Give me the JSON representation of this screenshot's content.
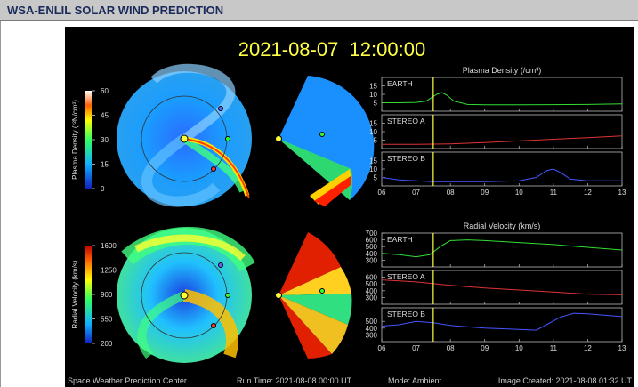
{
  "page": {
    "title": "WSA-ENLIL SOLAR WIND PREDICTION"
  },
  "figure": {
    "timestamp": "2021-08-07  12:00:00",
    "density_colorbar": {
      "label": "Plasma Density (r²N/cm³)",
      "ticks": [
        "60",
        "45",
        "30",
        "15",
        "0"
      ]
    },
    "velocity_colorbar": {
      "label": "Radial Velocity (km/s)",
      "ticks": [
        "1600",
        "1250",
        "900",
        "550",
        "200"
      ]
    },
    "footer": {
      "center": "Space Weather Prediction Center",
      "run_time": "Run Time: 2021-08-08 00:00 UT",
      "mode": "Mode: Ambient",
      "created": "Image Created: 2021-08-08 01:32 UT"
    }
  },
  "chart_data": [
    {
      "type": "line",
      "title": "Plasma Density (/cm³)",
      "x_ticks": [
        "06",
        "07",
        "08",
        "09",
        "10",
        "11",
        "12",
        "13"
      ],
      "xlim": [
        6,
        13
      ],
      "current_time": 7.5,
      "panels": [
        {
          "name": "EARTH",
          "color": "#33dd33",
          "ylim": [
            0,
            20
          ],
          "y_ticks": [
            "15",
            "10",
            "5"
          ],
          "x": [
            6,
            6.5,
            7,
            7.3,
            7.6,
            7.75,
            7.9,
            8.1,
            8.5,
            9,
            10,
            11,
            12,
            13
          ],
          "y": [
            5,
            5,
            5.2,
            6,
            10,
            11,
            9.5,
            6,
            4,
            3.8,
            3.8,
            3.9,
            4,
            4.3
          ]
        },
        {
          "name": "STEREO A",
          "color": "#dd3333",
          "ylim": [
            0,
            20
          ],
          "y_ticks": [
            "15",
            "10",
            "5"
          ],
          "x": [
            6,
            7,
            8,
            9,
            10,
            11,
            12,
            13
          ],
          "y": [
            2.5,
            2.5,
            2.8,
            3.5,
            4.5,
            5.5,
            6.5,
            7.5
          ]
        },
        {
          "name": "STEREO B",
          "color": "#4455ff",
          "ylim": [
            0,
            20
          ],
          "y_ticks": [
            "15",
            "10",
            "5"
          ],
          "x": [
            6,
            6.5,
            7,
            7.5,
            8,
            9,
            10,
            10.5,
            10.8,
            11,
            11.2,
            11.5,
            12,
            13
          ],
          "y": [
            5,
            3.5,
            3,
            2.5,
            2.5,
            2.5,
            3,
            5,
            9,
            10,
            8,
            4,
            3,
            3
          ]
        }
      ]
    },
    {
      "type": "line",
      "title": "Radial Velocity (km/s)",
      "x_ticks": [
        "06",
        "07",
        "08",
        "09",
        "10",
        "11",
        "12",
        "13"
      ],
      "xlim": [
        6,
        13
      ],
      "current_time": 7.5,
      "panels": [
        {
          "name": "EARTH",
          "color": "#33dd33",
          "ylim": [
            200,
            700
          ],
          "y_ticks": [
            "700",
            "600",
            "500",
            "400",
            "300"
          ],
          "x": [
            6,
            6.5,
            7,
            7.4,
            7.7,
            8,
            8.5,
            9,
            10,
            11,
            12,
            13
          ],
          "y": [
            400,
            380,
            350,
            380,
            500,
            590,
            600,
            590,
            560,
            530,
            490,
            450
          ]
        },
        {
          "name": "STEREO A",
          "color": "#dd3333",
          "ylim": [
            200,
            700
          ],
          "y_ticks": [
            "600",
            "500",
            "400",
            "300"
          ],
          "x": [
            6,
            7,
            8,
            9,
            10,
            11,
            12,
            13
          ],
          "y": [
            560,
            530,
            480,
            440,
            410,
            380,
            350,
            340
          ]
        },
        {
          "name": "STEREO B",
          "color": "#4455ff",
          "ylim": [
            200,
            700
          ],
          "y_ticks": [
            "500",
            "400",
            "300"
          ],
          "x": [
            6,
            6.5,
            7,
            7.5,
            8,
            9,
            10,
            10.5,
            10.8,
            11.2,
            11.6,
            12,
            13
          ],
          "y": [
            430,
            450,
            500,
            480,
            440,
            400,
            380,
            370,
            450,
            560,
            620,
            610,
            570
          ]
        }
      ]
    }
  ]
}
